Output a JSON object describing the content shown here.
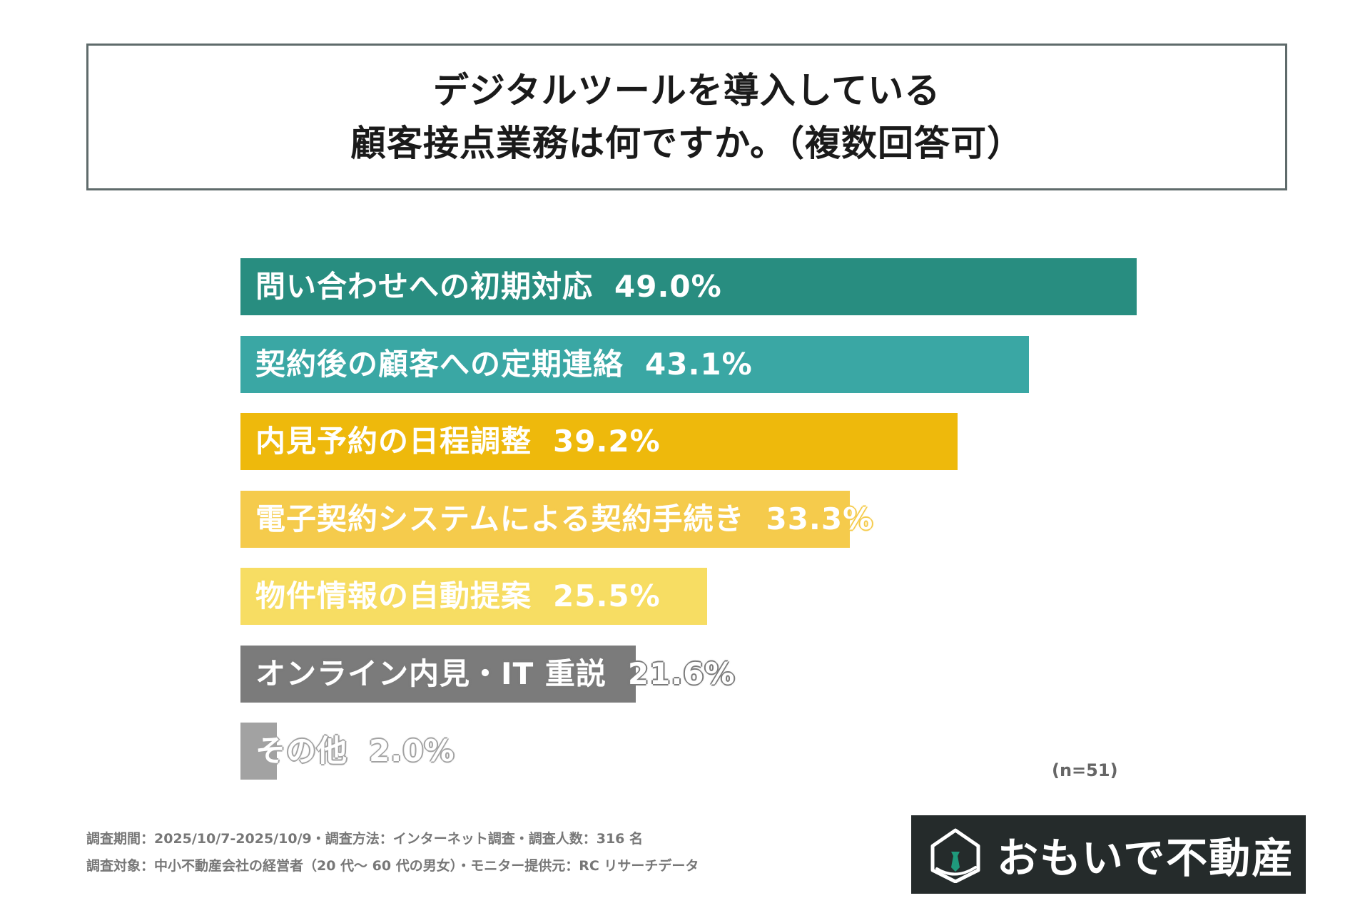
{
  "title": {
    "line1": "デジタルツールを導入している",
    "line2": "顧客接点業務は何ですか。（複数回答可）"
  },
  "chart_data": {
    "type": "bar",
    "orientation": "horizontal",
    "xlim": [
      0,
      100
    ],
    "categories": [
      "問い合わせへの初期対応",
      "契約後の顧客への定期連絡",
      "内見予約の日程調整",
      "電子契約システムによる契約手続き",
      "物件情報の自動提案",
      "オンライン内見・IT 重説",
      "その他"
    ],
    "values": [
      49.0,
      43.1,
      39.2,
      33.3,
      25.5,
      21.6,
      2.0
    ],
    "value_labels": [
      "49.0%",
      "43.1%",
      "39.2%",
      "33.3%",
      "25.5%",
      "21.6%",
      "2.0%"
    ],
    "colors": [
      "#288d80",
      "#3aa7a4",
      "#eeb90c",
      "#f5cb4c",
      "#f7dd63",
      "#7b7b7b",
      "#a2a2a2"
    ],
    "sample_note": "(n=51)"
  },
  "footer": {
    "line1": "調査期間：2025/10/7-2025/10/9・調査方法：インターネット調査・調査人数：316 名",
    "line2": "調査対象：中小不動産会社の経営者（20 代～ 60 代の男女）・モニター提供元：RC リサーチデータ"
  },
  "logo": {
    "text": "おもいで不動産",
    "icon": "house-necktie-icon",
    "background": "#252b2b"
  }
}
